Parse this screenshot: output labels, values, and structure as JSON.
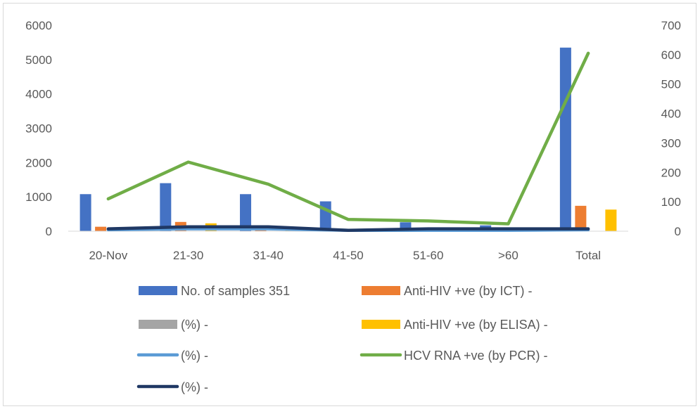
{
  "chart_data": {
    "type": "bar",
    "categories": [
      "20-Nov",
      "21-30",
      "31-40",
      "41-50",
      "51-60",
      ">60",
      "Total"
    ],
    "y_left": {
      "min": 0,
      "max": 6000,
      "ticks": [
        "0",
        "1000",
        "2000",
        "3000",
        "4000",
        "5000",
        "6000"
      ]
    },
    "y_right": {
      "min": 0,
      "max": 700,
      "ticks": [
        "0",
        "100",
        "200",
        "300",
        "400",
        "500",
        "600",
        "700"
      ]
    },
    "grid": false,
    "legend_position": "bottom",
    "series": [
      {
        "name": "No. of samples 351",
        "type": "bar",
        "axis": "left",
        "color": "#4472c4",
        "values": [
          1080,
          1400,
          1080,
          870,
          260,
          170,
          5350
        ]
      },
      {
        "name": "Anti-HIV +ve (by ICT) -",
        "type": "bar",
        "axis": "left",
        "color": "#ed7d31",
        "values": [
          130,
          270,
          110,
          20,
          10,
          10,
          740
        ]
      },
      {
        "name": "(%)  -",
        "type": "bar",
        "axis": "left",
        "color": "#a5a5a5",
        "values": [
          5,
          10,
          5,
          2,
          2,
          2,
          10
        ]
      },
      {
        "name": "Anti-HIV +ve (by ELISA) -",
        "type": "bar",
        "axis": "left",
        "color": "#ffc000",
        "values": [
          20,
          230,
          80,
          20,
          10,
          10,
          630
        ]
      },
      {
        "name": "(%)  -",
        "type": "line",
        "axis": "right",
        "color": "#5b9bd5",
        "values": [
          5,
          8,
          8,
          3,
          3,
          3,
          5
        ]
      },
      {
        "name": "HCV RNA +ve (by PCR) -",
        "type": "line",
        "axis": "right",
        "color": "#70ad47",
        "values": [
          110,
          235,
          160,
          40,
          35,
          25,
          605
        ]
      },
      {
        "name": "(%) -",
        "type": "line",
        "axis": "right",
        "color": "#1f3864",
        "values": [
          8,
          15,
          15,
          3,
          8,
          8,
          8
        ]
      }
    ]
  }
}
